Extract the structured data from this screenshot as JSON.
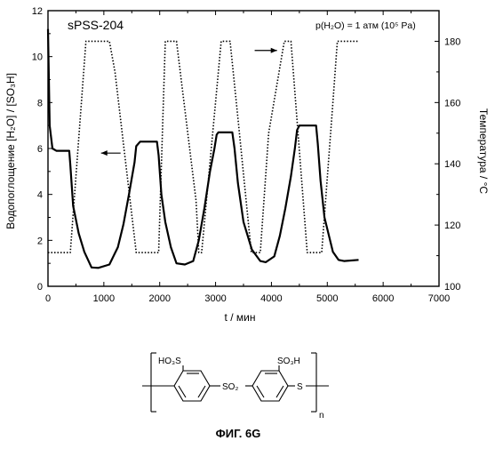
{
  "chart_data": {
    "type": "line",
    "title": "sPSS-204",
    "annotation": "p(H₂O) = 1 атм (10⁵ Pa)",
    "xlabel": "t / мин",
    "ylabel_left": "Водопоглощение [H₂O] / [SO₃H]",
    "ylabel_right": "Температура / °C",
    "xlim": [
      0,
      7000
    ],
    "ylim_left": [
      0,
      12
    ],
    "ylim_right": [
      100,
      190
    ],
    "x_ticks": [
      "0",
      "1000",
      "2000",
      "3000",
      "4000",
      "5000",
      "6000",
      "7000"
    ],
    "y_left_ticks": [
      "0",
      "2",
      "4",
      "6",
      "8",
      "10",
      "12"
    ],
    "y_right_ticks": [
      "100",
      "120",
      "140",
      "160",
      "180"
    ],
    "grid": false,
    "series": [
      {
        "axis": "left",
        "style": "solid",
        "x": [
          0,
          30,
          80,
          150,
          380,
          400,
          450,
          550,
          650,
          780,
          900,
          1100,
          1250,
          1350,
          1450,
          1550,
          1580,
          1650,
          1950,
          1980,
          2030,
          2100,
          2200,
          2300,
          2450,
          2600,
          2700,
          2800,
          2900,
          2980,
          3020,
          3050,
          3300,
          3340,
          3400,
          3500,
          3650,
          3800,
          3900,
          4050,
          4150,
          4250,
          4350,
          4420,
          4460,
          4500,
          4800,
          4830,
          4880,
          4950,
          5100,
          5200,
          5300,
          5560
        ],
        "values": [
          11.2,
          7.0,
          6.0,
          5.9,
          5.9,
          5.3,
          3.5,
          2.3,
          1.5,
          0.82,
          0.8,
          0.95,
          1.7,
          2.7,
          4.0,
          5.4,
          6.1,
          6.3,
          6.3,
          5.7,
          4.0,
          2.8,
          1.7,
          1.0,
          0.95,
          1.1,
          2.0,
          3.4,
          5.0,
          6.0,
          6.6,
          6.7,
          6.7,
          6.0,
          4.5,
          2.8,
          1.6,
          1.1,
          1.05,
          1.3,
          2.2,
          3.4,
          4.8,
          6.0,
          6.8,
          7.0,
          7.0,
          6.2,
          4.6,
          3.0,
          1.5,
          1.15,
          1.1,
          1.15
        ]
      },
      {
        "axis": "right",
        "style": "dotted",
        "x": [
          0,
          400,
          680,
          1100,
          1200,
          1580,
          1980,
          2100,
          2300,
          2650,
          2700,
          2750,
          3100,
          3260,
          3400,
          3640,
          3750,
          3800,
          3950,
          4230,
          4350,
          4640,
          4900,
          5100,
          5180,
          5560
        ],
        "values": [
          111,
          111,
          180,
          180,
          170,
          111,
          111,
          180,
          180,
          128,
          111,
          111,
          180,
          180,
          155,
          111,
          111,
          111,
          150,
          180,
          180,
          111,
          111,
          160,
          180,
          180
        ]
      }
    ],
    "arrows": [
      {
        "direction": "left",
        "target_axis": "left"
      },
      {
        "direction": "right",
        "target_axis": "right"
      }
    ]
  },
  "structure": {
    "left_group": "HO₃S",
    "right_group": "SO₃H",
    "bridge_left": "SO₂",
    "bridge_right": "S",
    "subscript": "n"
  },
  "figure_caption": "ФИГ. 6G"
}
